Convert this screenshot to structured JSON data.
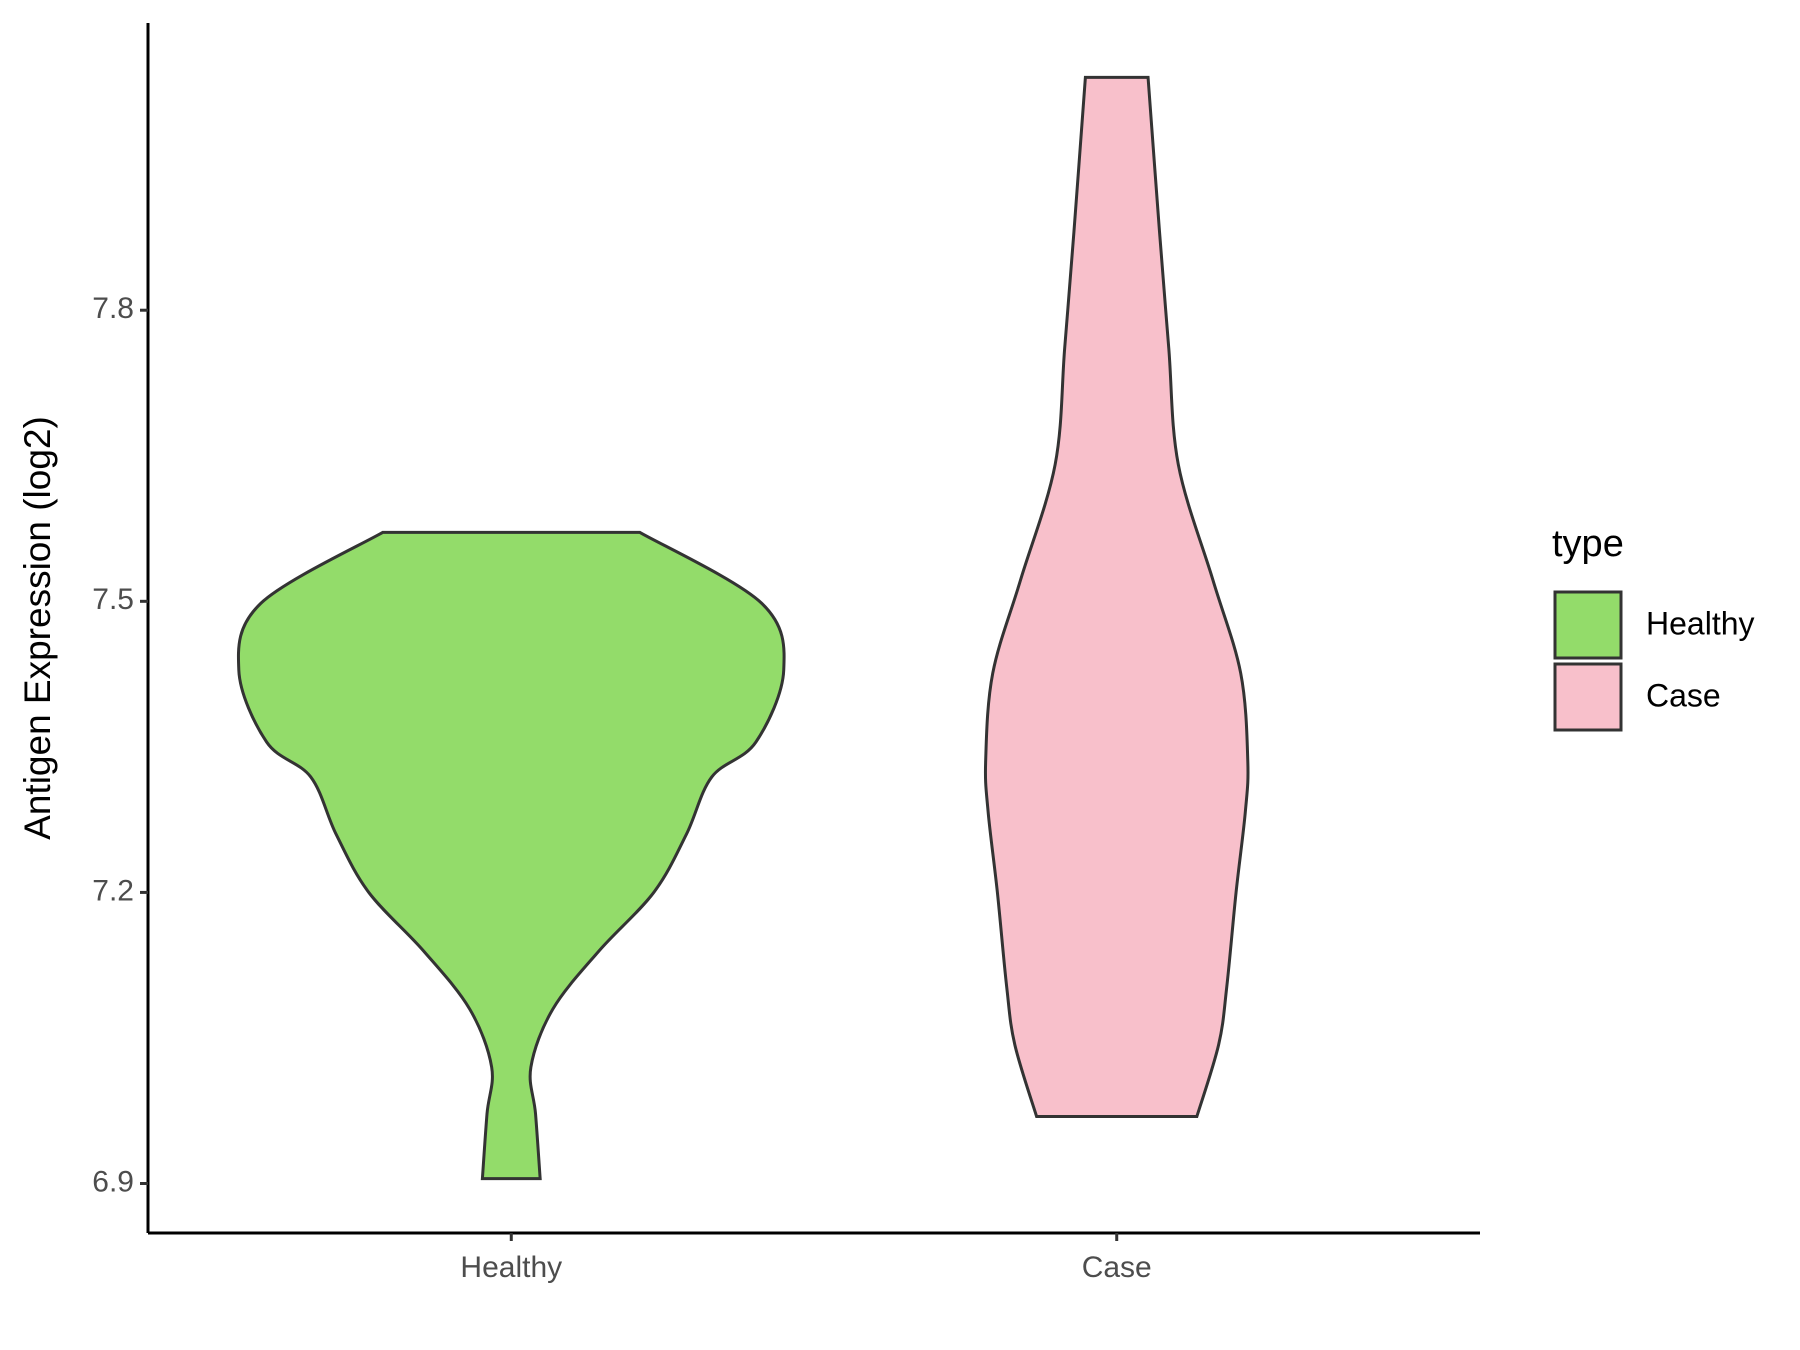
{
  "chart_data": {
    "type": "violin",
    "y_label": "Antigen Expression (log2)",
    "categories": [
      "Healthy",
      "Case"
    ],
    "legend_title": "type",
    "legend": "right",
    "series": [
      {
        "name": "Healthy",
        "color": "#93dc6a",
        "y": [
          6.905,
          6.972,
          7.02,
          7.08,
          7.14,
          7.2,
          7.26,
          7.319,
          7.355,
          7.429,
          7.498,
          7.571
        ],
        "widths": [
          0.106,
          0.089,
          0.072,
          0.153,
          0.323,
          0.523,
          0.643,
          0.736,
          0.898,
          1,
          0.919,
          0.472
        ]
      },
      {
        "name": "Case",
        "color": "#f8c0cb",
        "y": [
          6.969,
          7.043,
          7.103,
          7.2,
          7.283,
          7.336,
          7.426,
          7.522,
          7.641,
          7.761,
          7.881,
          8.04
        ],
        "widths": [
          0.294,
          0.374,
          0.404,
          0.438,
          0.472,
          0.481,
          0.455,
          0.353,
          0.226,
          0.191,
          0.157,
          0.115
        ]
      }
    ],
    "ylim": [
      6.849,
      8.096
    ],
    "yticks": [
      6.9,
      7.2,
      7.5,
      7.8
    ]
  }
}
